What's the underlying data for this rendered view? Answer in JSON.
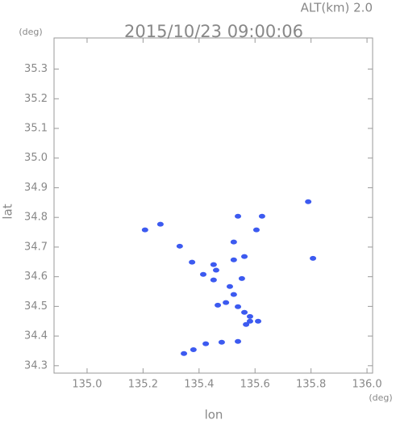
{
  "chart_data": {
    "type": "scatter",
    "title": "2015/10/23 09:00:06",
    "subtitle": "ALT(km) 2.0",
    "y_unit": "(deg)",
    "x_unit": "(deg)",
    "x_label": "lon",
    "y_label": "lat",
    "x": [
      135.207,
      135.262,
      135.331,
      135.375,
      135.452,
      135.461,
      135.415,
      135.452,
      135.524,
      135.562,
      135.553,
      135.51,
      135.524,
      135.467,
      135.496,
      135.539,
      135.562,
      135.582,
      135.568,
      135.611,
      135.582,
      135.346,
      135.38,
      135.424,
      135.481,
      135.539,
      135.625,
      135.539,
      135.807,
      135.79,
      135.605,
      135.524
    ],
    "values": [
      34.758,
      34.777,
      34.703,
      34.649,
      34.641,
      34.622,
      34.608,
      34.589,
      34.657,
      34.668,
      34.594,
      34.567,
      34.54,
      34.504,
      34.513,
      34.499,
      34.48,
      34.466,
      34.439,
      34.45,
      34.45,
      34.341,
      34.354,
      34.374,
      34.379,
      34.382,
      34.804,
      34.804,
      34.662,
      34.853,
      34.758,
      34.717
    ],
    "color": "#3c5af0",
    "xlim": [
      134.882,
      136.02
    ],
    "ylim": [
      34.275,
      35.405
    ],
    "xticks": [
      {
        "value": 135,
        "label": "135.0"
      },
      135.2,
      135.4,
      135.6,
      135.8,
      {
        "value": 136,
        "label": "136.0"
      }
    ],
    "yticks": [
      {
        "value": 34.3,
        "label": "34.3"
      },
      34.4,
      34.5,
      34.6,
      34.7,
      34.8,
      34.9,
      {
        "value": 35,
        "label": "35.0"
      },
      35.1,
      35.2,
      35.3
    ]
  }
}
